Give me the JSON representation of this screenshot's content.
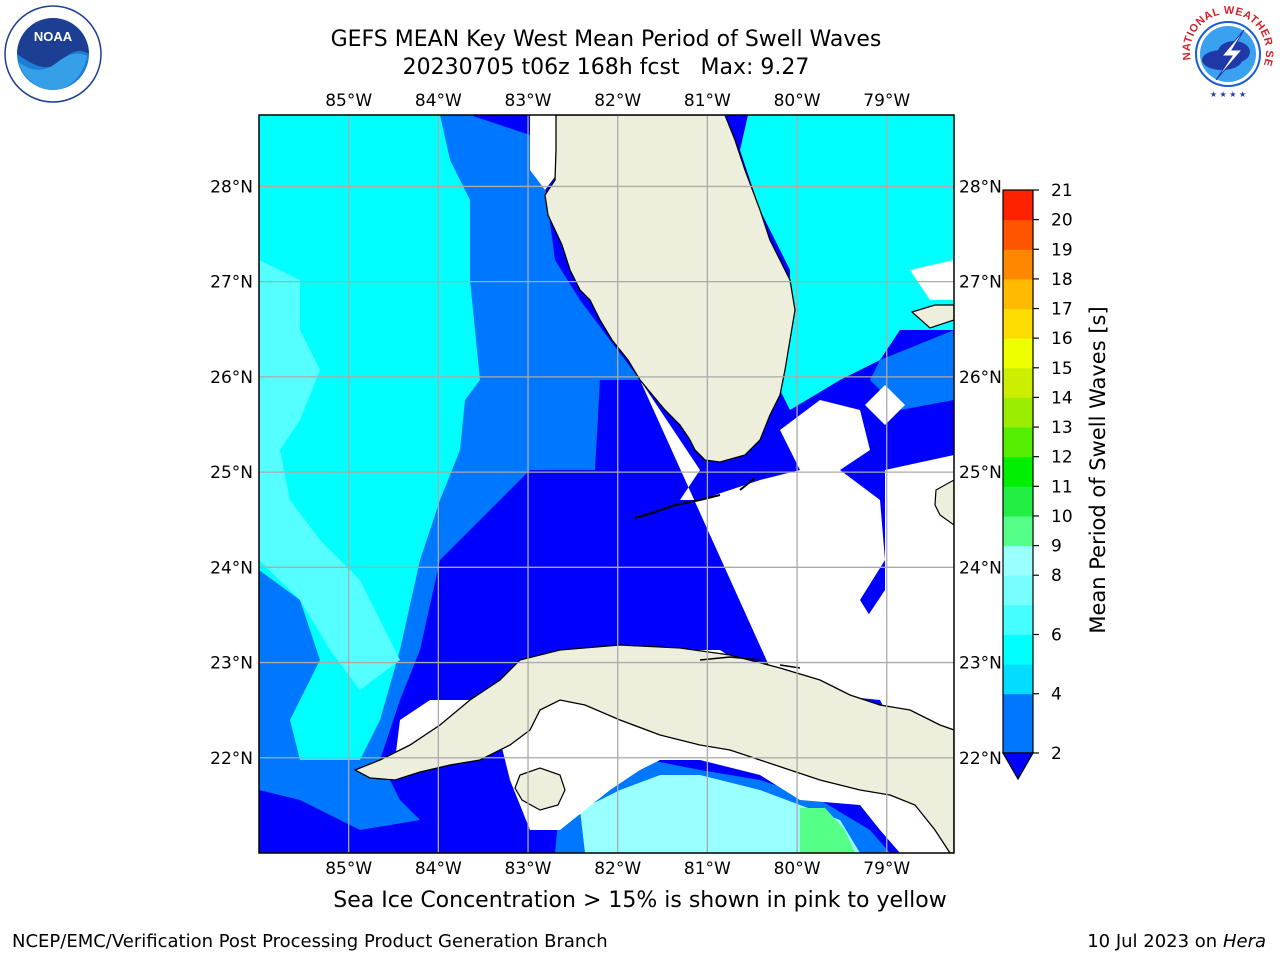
{
  "title": {
    "line1": "GEFS MEAN Key West Mean Period of Swell Waves",
    "line2": "20230705 t06z 168h fcst   Max: 9.27"
  },
  "map": {
    "lon_range": [
      -86.0,
      -78.25
    ],
    "lat_range": [
      21.0,
      28.75
    ],
    "lon_ticks": [
      {
        "value": -85,
        "label": "85°W"
      },
      {
        "value": -84,
        "label": "84°W"
      },
      {
        "value": -83,
        "label": "83°W"
      },
      {
        "value": -82,
        "label": "82°W"
      },
      {
        "value": -81,
        "label": "81°W"
      },
      {
        "value": -80,
        "label": "80°W"
      },
      {
        "value": -79,
        "label": "79°W"
      }
    ],
    "lat_ticks": [
      {
        "value": 28,
        "label": "28°N"
      },
      {
        "value": 27,
        "label": "27°N"
      },
      {
        "value": 26,
        "label": "26°N"
      },
      {
        "value": 25,
        "label": "25°N"
      },
      {
        "value": 24,
        "label": "24°N"
      },
      {
        "value": 23,
        "label": "23°N"
      },
      {
        "value": 22,
        "label": "22°N"
      }
    ],
    "land_color": "#eeeedd",
    "gridlines": true
  },
  "colorbar": {
    "label": "Mean Period of Swell Waves [s]",
    "levels": [
      2,
      3,
      4,
      5,
      6,
      7,
      8,
      9,
      10,
      11,
      12,
      13,
      14,
      15,
      16,
      17,
      18,
      19,
      20,
      21
    ],
    "tick_labels": [
      "2",
      "4",
      "6",
      "8",
      "9",
      "10",
      "11",
      "12",
      "13",
      "14",
      "15",
      "16",
      "17",
      "18",
      "19",
      "20",
      "21"
    ],
    "colors": [
      "#0077ff",
      "#0077ff",
      "#00ddff",
      "#00ffff",
      "#44ffff",
      "#77ffff",
      "#99ffff",
      "#55ff88",
      "#22ee44",
      "#00ee00",
      "#55ee00",
      "#99ee00",
      "#ccee00",
      "#eeff00",
      "#ffdd00",
      "#ffbb00",
      "#ff8800",
      "#ff5500",
      "#ff2200"
    ],
    "under_color": "#0000ff"
  },
  "caption": "Sea Ice Concentration > 15% is shown in pink to yellow",
  "credit": "NCEP/EMC/Verification Post Processing Product Generation Branch",
  "stamp": {
    "date": "10 Jul 2023",
    "on": "on",
    "host": "Hera"
  },
  "logos": {
    "noaa": "NOAA",
    "nws": "NATIONAL WEATHER SERVICE"
  }
}
